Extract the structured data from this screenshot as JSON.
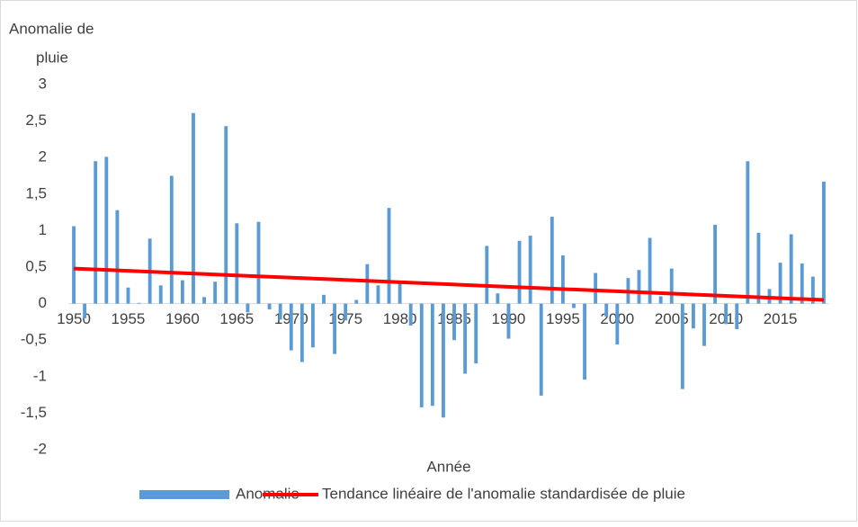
{
  "chart_data": {
    "type": "bar",
    "ylabel": [
      "Anomalie de",
      "pluie"
    ],
    "xlabel": "Année",
    "x": [
      1950,
      1951,
      1952,
      1953,
      1954,
      1955,
      1956,
      1957,
      1958,
      1959,
      1960,
      1961,
      1962,
      1963,
      1964,
      1965,
      1966,
      1967,
      1968,
      1969,
      1970,
      1971,
      1972,
      1973,
      1974,
      1975,
      1976,
      1977,
      1978,
      1979,
      1980,
      1981,
      1982,
      1983,
      1984,
      1985,
      1986,
      1987,
      1988,
      1989,
      1990,
      1991,
      1992,
      1993,
      1994,
      1995,
      1996,
      1997,
      1998,
      1999,
      2000,
      2001,
      2002,
      2003,
      2004,
      2005,
      2006,
      2007,
      2008,
      2009,
      2010,
      2011,
      2012,
      2013,
      2014,
      2015,
      2016,
      2017,
      2018,
      2019
    ],
    "series": [
      {
        "name": "Anomalie",
        "color": "#5b9bd5",
        "values": [
          1.06,
          -0.2,
          1.95,
          2.01,
          1.28,
          0.22,
          0.01,
          0.89,
          0.25,
          1.75,
          0.32,
          2.61,
          0.09,
          0.3,
          2.43,
          1.1,
          -0.12,
          1.12,
          -0.08,
          -0.22,
          -0.64,
          -0.8,
          -0.6,
          0.12,
          -0.69,
          -0.23,
          0.05,
          0.54,
          0.25,
          1.31,
          0.28,
          -0.3,
          -1.42,
          -1.4,
          -1.56,
          -0.5,
          -0.96,
          -0.82,
          0.79,
          0.14,
          -0.48,
          0.86,
          0.93,
          -1.26,
          1.19,
          0.66,
          -0.06,
          -1.04,
          0.42,
          -0.18,
          -0.56,
          0.35,
          0.46,
          0.9,
          0.1,
          0.48,
          -1.17,
          -0.34,
          -0.58,
          1.08,
          -0.28,
          -0.35,
          1.95,
          0.97,
          0.2,
          0.56,
          0.95,
          0.55,
          0.37,
          1.67
        ]
      },
      {
        "name": "Tendance linéaire de l'anomalie standardisée de pluie",
        "color": "#ff0000",
        "type": "line",
        "x": [
          1950,
          2019
        ],
        "values": [
          0.48,
          0.05
        ]
      }
    ],
    "xlim": [
      1949.5,
      2019.5
    ],
    "xticks": [
      1950,
      1955,
      1960,
      1965,
      1970,
      1975,
      1980,
      1985,
      1990,
      1995,
      2000,
      2005,
      2010,
      2015
    ],
    "ylim": [
      -2,
      3
    ],
    "yticks": [
      {
        "value": -2,
        "label": "-2"
      },
      {
        "value": -1.5,
        "label": "-1,5"
      },
      {
        "value": -1,
        "label": "-1"
      },
      {
        "value": -0.5,
        "label": "-0,5"
      },
      0,
      {
        "value": 0.5,
        "label": "0,5"
      },
      1,
      {
        "value": 1.5,
        "label": "1,5"
      },
      2,
      {
        "value": 2.5,
        "label": "2,5"
      },
      3
    ],
    "legend": "bottom"
  }
}
